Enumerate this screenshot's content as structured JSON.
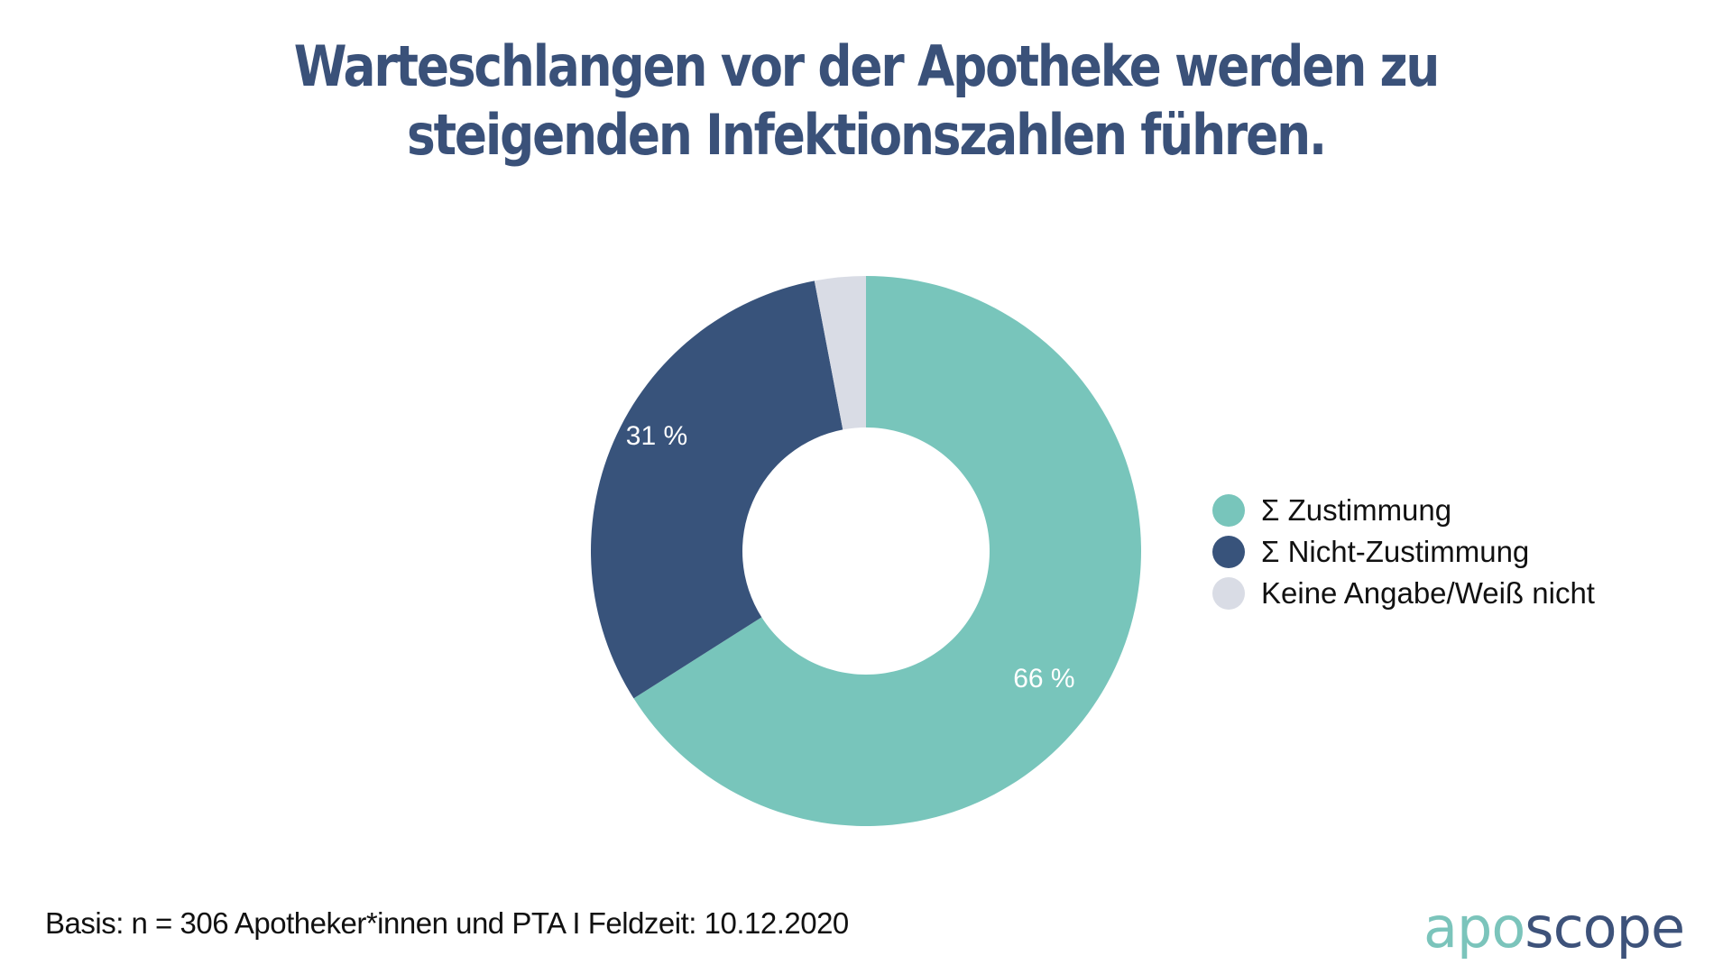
{
  "title": {
    "line1": "Warteschlangen vor der Apotheke werden zu",
    "line2": "steigenden Infektionszahlen führen."
  },
  "chart_data": {
    "type": "pie",
    "variant": "donut",
    "title": "Warteschlangen vor der Apotheke werden zu steigenden Infektionszahlen führen.",
    "unit": "%",
    "series": [
      {
        "name": "Σ Zustimmung",
        "value": 66,
        "label": "66 %",
        "color": "#78c5bb"
      },
      {
        "name": "Σ Nicht-Zustimmung",
        "value": 31,
        "label": "31 %",
        "color": "#38537b"
      },
      {
        "name": "Keine Angabe/Weiß nicht",
        "value": 3,
        "label": "",
        "color": "#d9dce5"
      }
    ],
    "start_angle": "12 o'clock",
    "direction": "clockwise",
    "legend_position": "right"
  },
  "legend": [
    {
      "label": "Σ Zustimmung",
      "color": "#78c5bb"
    },
    {
      "label": "Σ Nicht-Zustimmung",
      "color": "#38537b"
    },
    {
      "label": "Keine Angabe/Weiß nicht",
      "color": "#d9dce5"
    }
  ],
  "footer": "Basis: n = 306 Apotheker*innen und PTA I Feldzeit: 10.12.2020",
  "logo": {
    "part1": "apo",
    "part2": "scope"
  }
}
